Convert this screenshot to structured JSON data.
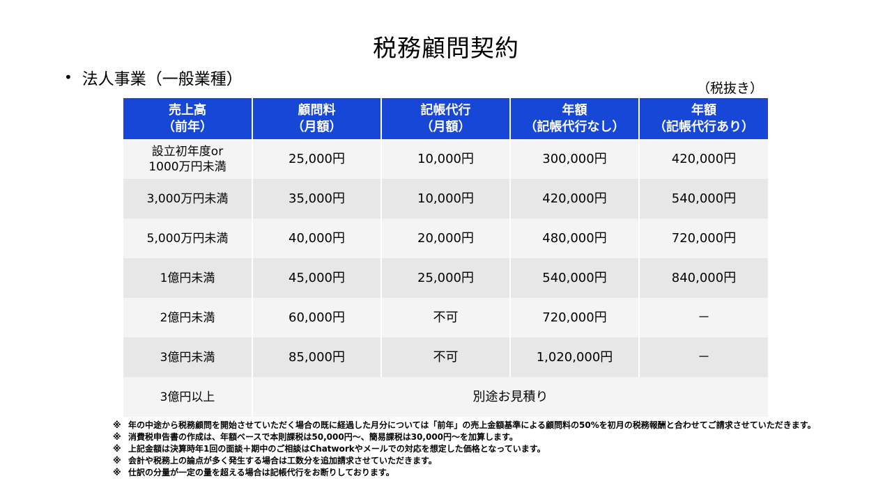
{
  "title": "税務顧問契約",
  "section": {
    "bullet": "•",
    "heading": "法人事業（一般業種）"
  },
  "tax_note": "（税抜き）",
  "table": {
    "headers": [
      [
        "売上高",
        "（前年）"
      ],
      [
        "顧問料",
        "（月額）"
      ],
      [
        "記帳代行",
        "（月額）"
      ],
      [
        "年額",
        "（記帳代行なし）"
      ],
      [
        "年額",
        "（記帳代行あり）"
      ]
    ],
    "rows": [
      {
        "sales": [
          "設立初年度or",
          "1000万円未満"
        ],
        "fee": "25,000円",
        "bookkeeping": "10,000円",
        "annual_without": "300,000円",
        "annual_with": "420,000円"
      },
      {
        "sales": [
          "3,000万円未満"
        ],
        "fee": "35,000円",
        "bookkeeping": "10,000円",
        "annual_without": "420,000円",
        "annual_with": "540,000円"
      },
      {
        "sales": [
          "5,000万円未満"
        ],
        "fee": "40,000円",
        "bookkeeping": "20,000円",
        "annual_without": "480,000円",
        "annual_with": "720,000円"
      },
      {
        "sales": [
          "1億円未満"
        ],
        "fee": "45,000円",
        "bookkeeping": "25,000円",
        "annual_without": "540,000円",
        "annual_with": "840,000円"
      },
      {
        "sales": [
          "2億円未満"
        ],
        "fee": "60,000円",
        "bookkeeping": "不可",
        "annual_without": "720,000円",
        "annual_with": "－"
      },
      {
        "sales": [
          "3億円未満"
        ],
        "fee": "85,000円",
        "bookkeeping": "不可",
        "annual_without": "1,020,000円",
        "annual_with": "－"
      }
    ],
    "last_row": {
      "sales": "3億円以上",
      "merged": "別途お見積り"
    }
  },
  "footnotes": {
    "mark": "※",
    "lines": [
      "年の中途から税務顧問を開始させていただく場合の既に経過した月分については「前年」の売上金額基準による顧問料の50%を初月の税務報酬と合わせてご請求させていただきます。",
      "消費税申告書の作成は、年額ベースで本則課税は50,000円～、簡易課税は30,000円～を加算します。",
      "上記金額は決算時年1回の面談＋期中のご相談はChatworkやメールでの対応を想定した価格となっています。",
      "会計や税務上の論点が多く発生する場合は工数分を追加請求させていただきます。",
      "仕訳の分量が一定の量を超える場合は記帳代行をお断りしております。"
    ]
  },
  "colors": {
    "header_bg": "#1747d6",
    "row_light": "#f4f4f4",
    "row_dark": "#e7e7e7"
  }
}
